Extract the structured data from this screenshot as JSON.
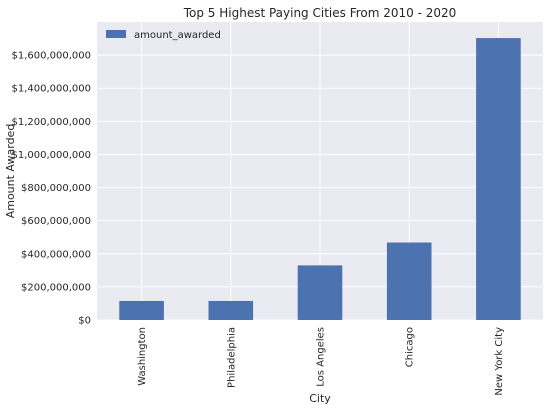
{
  "chart_data": {
    "type": "bar",
    "title": "Top 5 Highest Paying Cities From 2010 - 2020",
    "xlabel": "City",
    "ylabel": "Amount Awarded",
    "categories": [
      "Washington",
      "Philadelphia",
      "Los Angeles",
      "Chicago",
      "New York City"
    ],
    "series": [
      {
        "name": "amount_awarded",
        "values": [
          115000000,
          115000000,
          330000000,
          468000000,
          1703000000
        ]
      }
    ],
    "ylim": [
      0,
      1800000000
    ],
    "yticks": [
      0,
      200000000,
      400000000,
      600000000,
      800000000,
      1000000000,
      1200000000,
      1400000000,
      1600000000
    ],
    "ytick_labels": [
      "$0",
      "$200,000,000",
      "$400,000,000",
      "$600,000,000",
      "$800,000,000",
      "$1,000,000,000",
      "$1,200,000,000",
      "$1,400,000,000",
      "$1,600,000,000"
    ],
    "legend_position": "top-left",
    "grid": true,
    "colors": {
      "bar": "#4c72b0",
      "plot_background": "#eaeaf2",
      "grid": "#ffffff"
    }
  }
}
